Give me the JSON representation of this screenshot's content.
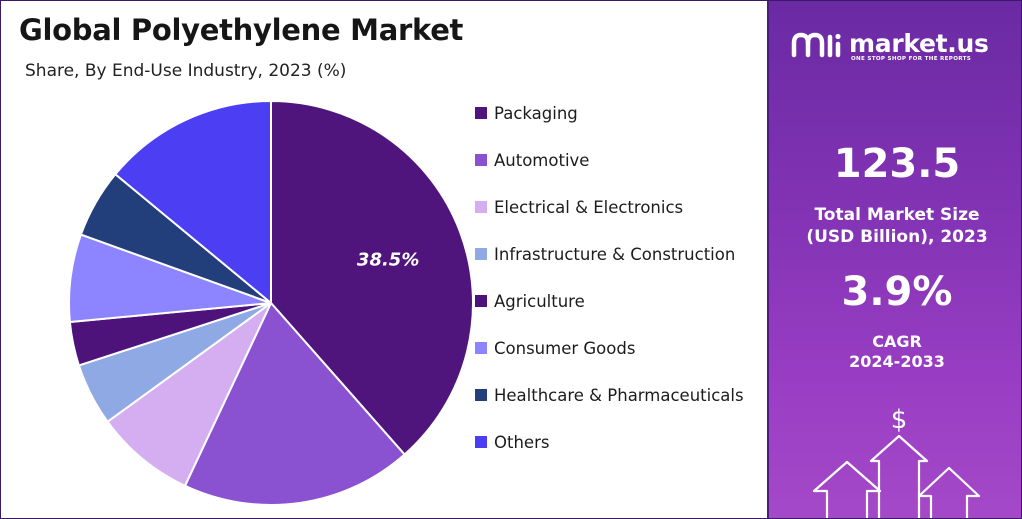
{
  "chart_data": {
    "type": "pie",
    "title": "Global Polyethylene Market",
    "subtitle": "Share, By End-Use Industry, 2023 (%)",
    "series": [
      {
        "name": "Packaging",
        "value": 38.5,
        "color": "#4f157c"
      },
      {
        "name": "Automotive",
        "value": 18.5,
        "color": "#8a52d1"
      },
      {
        "name": "Electrical & Electronics",
        "value": 8.0,
        "color": "#d4aef0"
      },
      {
        "name": "Infrastructure & Construction",
        "value": 5.0,
        "color": "#8fa9e4"
      },
      {
        "name": "Agriculture",
        "value": 3.5,
        "color": "#4d137b"
      },
      {
        "name": "Consumer Goods",
        "value": 7.0,
        "color": "#8c85ff"
      },
      {
        "name": "Healthcare & Pharmaceuticals",
        "value": 5.5,
        "color": "#223f7c"
      },
      {
        "name": "Others",
        "value": 14.0,
        "color": "#4b3ef3"
      }
    ],
    "data_labels": [
      {
        "series": "Packaging",
        "text": "38.5%"
      }
    ],
    "legend_placement": "right"
  },
  "brand": {
    "name": "market.us",
    "tagline": "ONE STOP SHOP FOR THE REPORTS"
  },
  "stats": {
    "market_size_value": "123.5",
    "market_size_label_line1": "Total Market Size",
    "market_size_label_line2": "(USD Billion), 2023",
    "cagr_value": "3.9%",
    "cagr_label_line1": "CAGR",
    "cagr_label_line2": "2024-2033"
  },
  "icons": {
    "dollar": "$",
    "arrows": "growth-arrows-icon"
  }
}
